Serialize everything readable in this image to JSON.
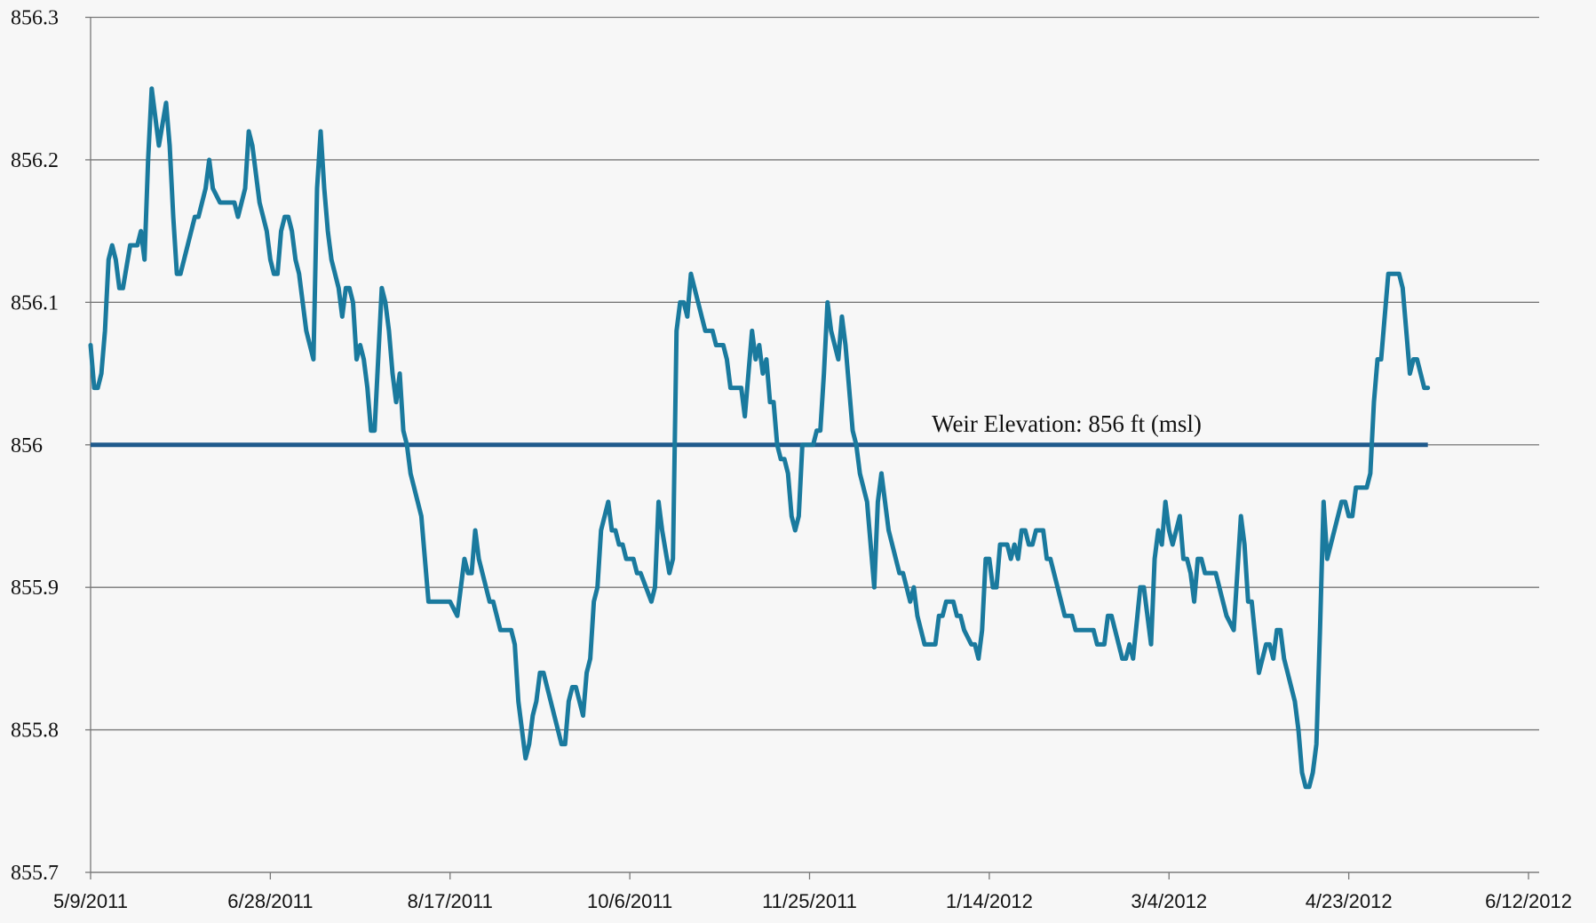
{
  "chart_data": {
    "type": "line",
    "annotation": "Weir Elevation: 856 ft (msl)",
    "reference_line": {
      "value": 856,
      "color": "#1f5a8c"
    },
    "xlim": [
      "2011-05-09",
      "2012-06-12"
    ],
    "xticks": [
      {
        "value": "2011-05-09",
        "label": "5/9/2011"
      },
      {
        "value": "2011-06-28",
        "label": "6/28/2011"
      },
      {
        "value": "2011-08-17",
        "label": "8/17/2011"
      },
      {
        "value": "2011-10-06",
        "label": "10/6/2011"
      },
      {
        "value": "2011-11-25",
        "label": "11/25/2011"
      },
      {
        "value": "2012-01-14",
        "label": "1/14/2012"
      },
      {
        "value": "2012-03-04",
        "label": "3/4/2012"
      },
      {
        "value": "2012-04-23",
        "label": "4/23/2012"
      },
      {
        "value": "2012-06-12",
        "label": "6/12/2012"
      }
    ],
    "ylim": [
      855.7,
      856.3
    ],
    "yticks": [
      855.7,
      855.8,
      855.9,
      856,
      856.1,
      856.2,
      856.3
    ],
    "grid": true,
    "color": "#1a7a9e",
    "x": [
      "2011-05-09",
      "2011-05-10",
      "2011-05-11",
      "2011-05-12",
      "2011-05-13",
      "2011-05-14",
      "2011-05-15",
      "2011-05-16",
      "2011-05-17",
      "2011-05-18",
      "2011-05-20",
      "2011-05-22",
      "2011-05-23",
      "2011-05-24",
      "2011-05-25",
      "2011-05-26",
      "2011-05-28",
      "2011-05-30",
      "2011-05-31",
      "2011-06-01",
      "2011-06-02",
      "2011-06-03",
      "2011-06-07",
      "2011-06-08",
      "2011-06-10",
      "2011-06-11",
      "2011-06-12",
      "2011-06-14",
      "2011-06-18",
      "2011-06-19",
      "2011-06-21",
      "2011-06-22",
      "2011-06-23",
      "2011-06-25",
      "2011-06-27",
      "2011-06-28",
      "2011-06-29",
      "2011-06-30",
      "2011-07-01",
      "2011-07-02",
      "2011-07-03",
      "2011-07-04",
      "2011-07-05",
      "2011-07-06",
      "2011-07-08",
      "2011-07-10",
      "2011-07-11",
      "2011-07-12",
      "2011-07-13",
      "2011-07-14",
      "2011-07-15",
      "2011-07-17",
      "2011-07-18",
      "2011-07-19",
      "2011-07-20",
      "2011-07-21",
      "2011-07-22",
      "2011-07-23",
      "2011-07-24",
      "2011-07-25",
      "2011-07-26",
      "2011-07-27",
      "2011-07-29",
      "2011-07-30",
      "2011-07-31",
      "2011-08-01",
      "2011-08-02",
      "2011-08-03",
      "2011-08-04",
      "2011-08-05",
      "2011-08-06",
      "2011-08-09",
      "2011-08-11",
      "2011-08-17",
      "2011-08-19",
      "2011-08-21",
      "2011-08-22",
      "2011-08-23",
      "2011-08-24",
      "2011-08-25",
      "2011-08-28",
      "2011-08-29",
      "2011-08-31",
      "2011-09-03",
      "2011-09-04",
      "2011-09-05",
      "2011-09-07",
      "2011-09-08",
      "2011-09-09",
      "2011-09-10",
      "2011-09-11",
      "2011-09-12",
      "2011-09-17",
      "2011-09-18",
      "2011-09-19",
      "2011-09-20",
      "2011-09-21",
      "2011-09-23",
      "2011-09-24",
      "2011-09-25",
      "2011-09-26",
      "2011-09-27",
      "2011-09-28",
      "2011-09-30",
      "2011-10-01",
      "2011-10-02",
      "2011-10-03",
      "2011-10-04",
      "2011-10-05",
      "2011-10-07",
      "2011-10-08",
      "2011-10-09",
      "2011-10-12",
      "2011-10-13",
      "2011-10-14",
      "2011-10-15",
      "2011-10-17",
      "2011-10-18",
      "2011-10-19",
      "2011-10-20",
      "2011-10-21",
      "2011-10-22",
      "2011-10-23",
      "2011-10-25",
      "2011-10-27",
      "2011-10-29",
      "2011-10-30",
      "2011-11-01",
      "2011-11-02",
      "2011-11-03",
      "2011-11-06",
      "2011-11-07",
      "2011-11-09",
      "2011-11-10",
      "2011-11-11",
      "2011-11-12",
      "2011-11-13",
      "2011-11-14",
      "2011-11-15",
      "2011-11-16",
      "2011-11-17",
      "2011-11-18",
      "2011-11-19",
      "2011-11-20",
      "2011-11-21",
      "2011-11-22",
      "2011-11-23",
      "2011-11-26",
      "2011-11-27",
      "2011-11-28",
      "2011-11-29",
      "2011-11-30",
      "2011-12-01",
      "2011-12-03",
      "2011-12-04",
      "2011-12-05",
      "2011-12-06",
      "2011-12-07",
      "2011-12-08",
      "2011-12-09",
      "2011-12-10",
      "2011-12-11",
      "2011-12-13",
      "2011-12-14",
      "2011-12-15",
      "2011-12-17",
      "2011-12-20",
      "2011-12-21",
      "2011-12-22",
      "2011-12-23",
      "2011-12-24",
      "2011-12-25",
      "2011-12-27",
      "2011-12-30",
      "2011-12-31",
      "2012-01-01",
      "2012-01-02",
      "2012-01-04",
      "2012-01-05",
      "2012-01-06",
      "2012-01-07",
      "2012-01-09",
      "2012-01-10",
      "2012-01-11",
      "2012-01-12",
      "2012-01-13",
      "2012-01-14",
      "2012-01-15",
      "2012-01-16",
      "2012-01-17",
      "2012-01-19",
      "2012-01-20",
      "2012-01-21",
      "2012-01-22",
      "2012-01-23",
      "2012-01-24",
      "2012-01-25",
      "2012-01-26",
      "2012-01-27",
      "2012-01-29",
      "2012-01-30",
      "2012-01-31",
      "2012-02-02",
      "2012-02-04",
      "2012-02-06",
      "2012-02-07",
      "2012-02-12",
      "2012-02-13",
      "2012-02-15",
      "2012-02-16",
      "2012-02-17",
      "2012-02-20",
      "2012-02-21",
      "2012-02-22",
      "2012-02-23",
      "2012-02-25",
      "2012-02-26",
      "2012-02-27",
      "2012-02-28",
      "2012-02-29",
      "2012-03-01",
      "2012-03-02",
      "2012-03-03",
      "2012-03-04",
      "2012-03-05",
      "2012-03-07",
      "2012-03-08",
      "2012-03-09",
      "2012-03-10",
      "2012-03-11",
      "2012-03-12",
      "2012-03-13",
      "2012-03-14",
      "2012-03-17",
      "2012-03-18",
      "2012-03-20",
      "2012-03-22",
      "2012-03-24",
      "2012-03-25",
      "2012-03-26",
      "2012-03-27",
      "2012-03-29",
      "2012-03-31",
      "2012-04-01",
      "2012-04-02",
      "2012-04-03",
      "2012-04-04",
      "2012-04-05",
      "2012-04-07",
      "2012-04-08",
      "2012-04-09",
      "2012-04-10",
      "2012-04-11",
      "2012-04-12",
      "2012-04-13",
      "2012-04-14",
      "2012-04-15",
      "2012-04-16",
      "2012-04-17",
      "2012-04-18",
      "2012-04-20",
      "2012-04-21",
      "2012-04-22",
      "2012-04-23",
      "2012-04-24",
      "2012-04-25",
      "2012-04-28",
      "2012-04-29",
      "2012-04-30",
      "2012-05-01",
      "2012-05-02",
      "2012-05-03",
      "2012-05-04",
      "2012-05-07",
      "2012-05-08",
      "2012-05-09",
      "2012-05-10",
      "2012-05-11",
      "2012-05-12",
      "2012-05-14",
      "2012-05-15"
    ],
    "values": [
      856.07,
      856.04,
      856.04,
      856.05,
      856.08,
      856.13,
      856.14,
      856.13,
      856.11,
      856.11,
      856.14,
      856.14,
      856.15,
      856.13,
      856.2,
      856.25,
      856.21,
      856.24,
      856.21,
      856.16,
      856.12,
      856.12,
      856.16,
      856.16,
      856.18,
      856.2,
      856.18,
      856.17,
      856.17,
      856.16,
      856.18,
      856.22,
      856.21,
      856.17,
      856.15,
      856.13,
      856.12,
      856.12,
      856.15,
      856.16,
      856.16,
      856.15,
      856.13,
      856.12,
      856.08,
      856.06,
      856.18,
      856.22,
      856.18,
      856.15,
      856.13,
      856.11,
      856.09,
      856.11,
      856.11,
      856.1,
      856.06,
      856.07,
      856.06,
      856.04,
      856.01,
      856.01,
      856.11,
      856.1,
      856.08,
      856.05,
      856.03,
      856.05,
      856.01,
      856.0,
      855.98,
      855.95,
      855.89,
      855.89,
      855.88,
      855.92,
      855.91,
      855.91,
      855.94,
      855.92,
      855.89,
      855.89,
      855.87,
      855.87,
      855.86,
      855.82,
      855.78,
      855.79,
      855.81,
      855.82,
      855.84,
      855.84,
      855.79,
      855.79,
      855.82,
      855.83,
      855.83,
      855.81,
      855.84,
      855.85,
      855.89,
      855.9,
      855.94,
      855.96,
      855.94,
      855.94,
      855.93,
      855.93,
      855.92,
      855.92,
      855.91,
      855.91,
      855.89,
      855.9,
      855.96,
      855.94,
      855.91,
      855.92,
      856.08,
      856.1,
      856.1,
      856.09,
      856.12,
      856.1,
      856.08,
      856.08,
      856.07,
      856.07,
      856.06,
      856.04,
      856.04,
      856.02,
      856.08,
      856.06,
      856.07,
      856.05,
      856.06,
      856.03,
      856.03,
      856.0,
      855.99,
      855.99,
      855.98,
      855.95,
      855.94,
      855.95,
      856.0,
      856.0,
      856.01,
      856.01,
      856.05,
      856.1,
      856.08,
      856.06,
      856.09,
      856.07,
      856.04,
      856.01,
      856.0,
      855.98,
      855.97,
      855.96,
      855.9,
      855.96,
      855.98,
      855.94,
      855.91,
      855.91,
      855.9,
      855.89,
      855.9,
      855.88,
      855.86,
      855.86,
      855.88,
      855.88,
      855.89,
      855.89,
      855.88,
      855.88,
      855.87,
      855.86,
      855.86,
      855.85,
      855.87,
      855.92,
      855.92,
      855.9,
      855.9,
      855.93,
      855.93,
      855.92,
      855.93,
      855.92,
      855.94,
      855.94,
      855.93,
      855.93,
      855.94,
      855.94,
      855.92,
      855.92,
      855.9,
      855.88,
      855.88,
      855.87,
      855.87,
      855.86,
      855.86,
      855.88,
      855.88,
      855.85,
      855.85,
      855.86,
      855.85,
      855.9,
      855.9,
      855.88,
      855.86,
      855.92,
      855.94,
      855.93,
      855.96,
      855.94,
      855.93,
      855.95,
      855.92,
      855.92,
      855.91,
      855.89,
      855.92,
      855.92,
      855.91,
      855.91,
      855.9,
      855.88,
      855.87,
      855.95,
      855.93,
      855.89,
      855.89,
      855.84,
      855.86,
      855.86,
      855.85,
      855.87,
      855.87,
      855.85,
      855.83,
      855.82,
      855.8,
      855.77,
      855.76,
      855.76,
      855.77,
      855.79,
      855.87,
      855.96,
      855.92,
      855.93,
      855.95,
      855.96,
      855.96,
      855.95,
      855.95,
      855.97,
      855.97,
      855.98,
      856.03,
      856.06,
      856.06,
      856.09,
      856.12,
      856.12,
      856.11,
      856.08,
      856.05,
      856.06,
      856.06,
      856.04,
      856.04
    ]
  }
}
